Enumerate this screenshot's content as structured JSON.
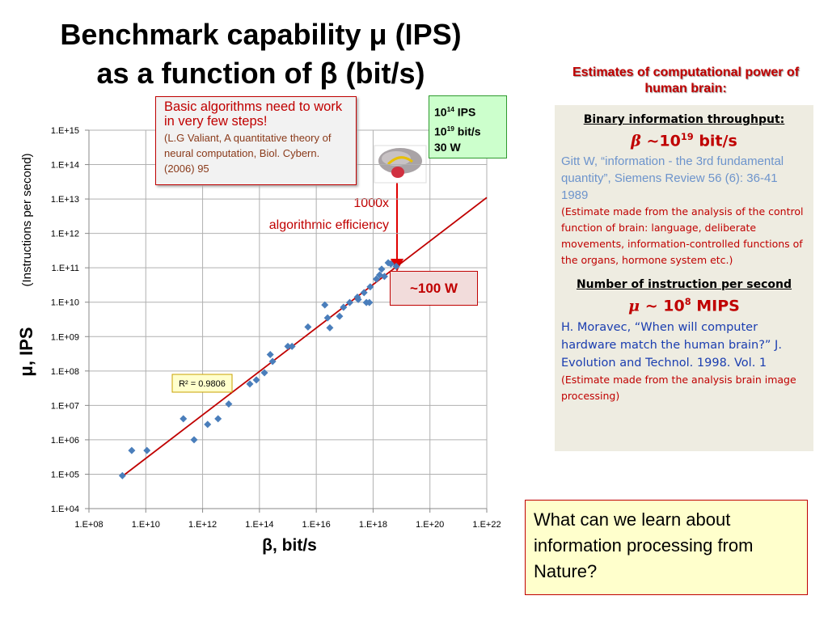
{
  "chart_data": {
    "type": "scatter",
    "title": [
      "Benchmark capability μ (IPS)",
      "as a function of β (bit/s)"
    ],
    "x_label": "β, bit/s",
    "y_label": "μ, IPS",
    "y_label_note": "(Instructions per second)",
    "x_log": true,
    "y_log": true,
    "grid": true,
    "color": "#4a7ebb",
    "xlim": [
      100000000.0,
      1e+22
    ],
    "ylim": [
      10000.0,
      1000000000000000.0
    ],
    "xticks": [
      {
        "value": 100000000.0,
        "label": "1.E+08"
      },
      {
        "value": 10000000000.0,
        "label": "1.E+10"
      },
      {
        "value": 1000000000000.0,
        "label": "1.E+12"
      },
      {
        "value": 100000000000000.0,
        "label": "1.E+14"
      },
      {
        "value": 1e+16,
        "label": "1.E+16"
      },
      {
        "value": 1e+18,
        "label": "1.E+18"
      },
      {
        "value": 1e+20,
        "label": "1.E+20"
      },
      {
        "value": 1e+22,
        "label": "1.E+22"
      }
    ],
    "yticks": [
      {
        "value": 10000.0,
        "label": "1.E+04"
      },
      {
        "value": 100000.0,
        "label": "1.E+05"
      },
      {
        "value": 1000000.0,
        "label": "1.E+06"
      },
      {
        "value": 10000000.0,
        "label": "1.E+07"
      },
      {
        "value": 100000000.0,
        "label": "1.E+08"
      },
      {
        "value": 1000000000.0,
        "label": "1.E+09"
      },
      {
        "value": 10000000000.0,
        "label": "1.E+10"
      },
      {
        "value": 100000000000.0,
        "label": "1.E+11"
      },
      {
        "value": 1000000000000.0,
        "label": "1.E+12"
      },
      {
        "value": 10000000000000.0,
        "label": "1.E+13"
      },
      {
        "value": 100000000000000.0,
        "label": "1.E+14"
      },
      {
        "value": 1000000000000000.0,
        "label": "1.E+15"
      }
    ],
    "x": [
      1500000000.0,
      3200000000.0,
      11000000000.0,
      210000000000.0,
      500000000000.0,
      1500000000000.0,
      3500000000000.0,
      8300000000000.0,
      46000000000000.0,
      78000000000000.0,
      150000000000000.0,
      240000000000000.0,
      290000000000000.0,
      1000000000000000.0,
      1400000000000000.0,
      5100000000000000.0,
      2e+16,
      2.5e+16,
      3e+16,
      6.6e+16,
      9.1e+16,
      1.5e+17,
      2.8e+17,
      3e+17,
      4.8e+17,
      5.8e+17,
      7.4e+17,
      7.9e+17,
      1.3e+18,
      1.7e+18,
      2e+18,
      2.5e+18,
      3.4e+18,
      4.2e+18,
      6.5e+18
    ],
    "values": [
      91000.0,
      490000.0,
      490000.0,
      4100000.0,
      1000000.0,
      2800000.0,
      4100000.0,
      11000000.0,
      42000000.0,
      55000000.0,
      89000000.0,
      300000000.0,
      190000000.0,
      520000000.0,
      520000000.0,
      1900000000.0,
      8300000000.0,
      3500000000.0,
      1800000000.0,
      3900000000.0,
      7100000000.0,
      9800000000.0,
      14000000000.0,
      12000000000.0,
      19000000000.0,
      9800000000.0,
      9800000000.0,
      28000000000.0,
      47000000000.0,
      62000000000.0,
      91000000000.0,
      56000000000.0,
      140000000000.0,
      130000000000.0,
      110000000000.0
    ],
    "trendline": {
      "color": "#c00000",
      "x": [
        1400000000.0,
        1e+22
      ],
      "values": [
        83000.0,
        11000000000000.0
      ],
      "label": "R² = 0.9806"
    },
    "annotations": [
      "1000x",
      "algorithmic efficiency",
      "~100 W"
    ]
  },
  "references_box": {
    "claim": "Basic algorithms need to work in very few steps!",
    "citation": "(L.G Valiant, A quantitative theory of neural computation, Biol. Cybern. (2006)  95"
  },
  "power_box": [
    {
      "base": "10",
      "exp": "14",
      "unit": " IPS"
    },
    {
      "base": "10",
      "exp": "19",
      "unit": " bit/s"
    },
    {
      "base": "30 W"
    }
  ],
  "panel": {
    "heading": "Estimates of computational power of human brain:",
    "sections": [
      {
        "title": "Binary information throughput:",
        "symbol": "β",
        "pre": " ~10",
        "exp": "19",
        "post": " bit/s",
        "reference": "Gitt W,  “information - the 3rd fundamental quantity”, Siemens Review 56 (6): 36-41 1989",
        "note": "(Estimate made from the analysis of the control function of brain: language, deliberate movements, information-controlled functions of the organs, hormone system etc.)"
      },
      {
        "title": "Number of instruction per second",
        "symbol": "μ",
        "pre": " ~ 10",
        "exp": "8",
        "post": " MIPS",
        "reference": "H. Moravec, “When will computer hardware match the human brain?” J. Evolution and Technol. 1998. Vol. 1",
        "note": "(Estimate made from the analysis brain image processing)"
      }
    ]
  },
  "question": "What can we learn about information processing from Nature?"
}
